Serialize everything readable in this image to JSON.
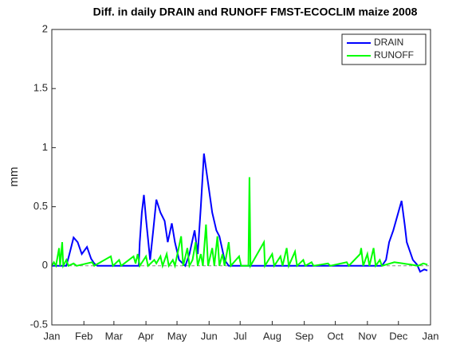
{
  "chart_data": {
    "type": "line",
    "title": "Diff. in daily DRAIN and RUNOFF FMST-ECOCLIM maize 2008",
    "ylabel": "mm",
    "xlim": [
      1,
      367
    ],
    "ylim": [
      -0.5,
      2
    ],
    "xticks": [
      {
        "value": 1,
        "label": "Jan"
      },
      {
        "value": 32,
        "label": "Feb"
      },
      {
        "value": 61,
        "label": "Mar"
      },
      {
        "value": 92,
        "label": "Apr"
      },
      {
        "value": 122,
        "label": "May"
      },
      {
        "value": 153,
        "label": "Jun"
      },
      {
        "value": 183,
        "label": "Jul"
      },
      {
        "value": 214,
        "label": "Aug"
      },
      {
        "value": 245,
        "label": "Sep"
      },
      {
        "value": 275,
        "label": "Oct"
      },
      {
        "value": 306,
        "label": "Nov"
      },
      {
        "value": 336,
        "label": "Dec"
      },
      {
        "value": 367,
        "label": "Jan"
      }
    ],
    "yticks": [
      {
        "value": -0.5,
        "label": "-0.5"
      },
      0,
      {
        "value": 0.5,
        "label": "0.5"
      },
      1,
      {
        "value": 1.5,
        "label": "1.5"
      },
      2
    ],
    "hline": 0,
    "legend": "top-right",
    "series": [
      {
        "name": "DRAIN",
        "color": "#0000ff",
        "x": [
          1,
          15,
          18,
          22,
          26,
          30,
          35,
          39,
          42,
          45,
          85,
          86,
          88,
          90,
          92,
          96,
          99,
          102,
          106,
          110,
          113,
          117,
          120,
          124,
          130,
          134,
          139,
          142,
          145,
          148,
          152,
          156,
          160,
          163,
          168,
          172,
          320,
          324,
          327,
          331,
          339,
          342,
          344,
          350,
          354,
          357,
          361,
          364
        ],
        "values": [
          0,
          0,
          0.1,
          0.24,
          0.2,
          0.1,
          0.16,
          0.06,
          0.02,
          0,
          0,
          0.2,
          0.45,
          0.6,
          0.4,
          0.05,
          0.3,
          0.56,
          0.45,
          0.38,
          0.2,
          0.36,
          0.2,
          0.05,
          0,
          0.1,
          0.3,
          0.1,
          0.5,
          0.95,
          0.7,
          0.45,
          0.3,
          0.25,
          0.05,
          0,
          0,
          0.05,
          0.2,
          0.3,
          0.55,
          0.35,
          0.2,
          0.05,
          0.01,
          -0.05,
          -0.03,
          -0.04
        ]
      },
      {
        "name": "RUNOFF",
        "color": "#00ff00",
        "x": [
          1,
          3,
          5,
          8,
          9,
          11,
          12,
          15,
          17,
          22,
          25,
          40,
          42,
          58,
          60,
          66,
          68,
          80,
          82,
          84,
          86,
          92,
          94,
          100,
          102,
          106,
          108,
          112,
          114,
          118,
          120,
          126,
          128,
          132,
          134,
          137,
          140,
          142,
          145,
          147,
          150,
          152,
          156,
          158,
          161,
          163,
          166,
          168,
          172,
          174,
          182,
          184,
          191,
          192,
          193,
          206,
          207,
          214,
          216,
          222,
          224,
          228,
          230,
          236,
          238,
          244,
          246,
          252,
          254,
          268,
          270,
          286,
          288,
          299,
          300,
          302,
          306,
          308,
          312,
          314,
          318,
          320,
          328,
          332,
          340,
          348,
          355,
          360,
          364
        ],
        "values": [
          0,
          0.03,
          0,
          0.15,
          0,
          0.2,
          0,
          0.05,
          0,
          0.02,
          0,
          0.03,
          0,
          0.08,
          0,
          0.05,
          0,
          0.08,
          0.02,
          0.1,
          0,
          0.08,
          0,
          0.05,
          0.02,
          0.08,
          0,
          0.1,
          0,
          0.05,
          0,
          0.25,
          0,
          0.15,
          0,
          0.05,
          0.2,
          0,
          0.1,
          0,
          0.35,
          0,
          0.15,
          0,
          0.25,
          0,
          0.1,
          0,
          0.2,
          0,
          0.08,
          0,
          0,
          0.75,
          0,
          0.2,
          0,
          0.1,
          0,
          0.08,
          0,
          0.15,
          0,
          0.12,
          0,
          0.05,
          0,
          0.03,
          0,
          0.02,
          0,
          0.03,
          0,
          0.1,
          0.15,
          0,
          0.1,
          0,
          0.15,
          0,
          0.05,
          0,
          0.02,
          0.03,
          0.02,
          0.01,
          0,
          0.02,
          0.01
        ]
      }
    ]
  }
}
